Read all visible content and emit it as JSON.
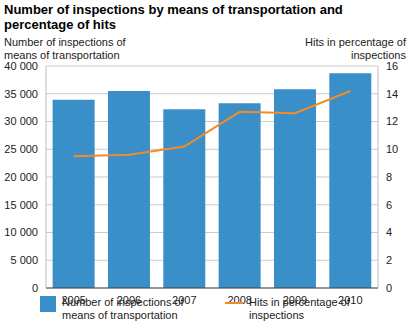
{
  "chart_data": {
    "type": "bar",
    "title": "Number of inspections by means of transportation and percentage of hits",
    "y_label": "Number of inspections of means of transportation",
    "y2_label": "Hits in percentage of inspections",
    "categories": [
      "2005",
      "2006",
      "2007",
      "2008",
      "2009",
      "2010"
    ],
    "series": [
      {
        "name": "Number of inspections of means of transportation",
        "type": "bar",
        "color": "#3a8fc9",
        "values": [
          33900,
          35500,
          32200,
          33300,
          35800,
          38700
        ]
      },
      {
        "name": "Hits in percentage of inspections",
        "type": "line",
        "axis": "y2",
        "color": "#f28c28",
        "values": [
          9.5,
          9.6,
          10.2,
          12.7,
          12.6,
          14.2
        ]
      }
    ],
    "ylim": [
      0,
      40000
    ],
    "yticks": [
      0,
      {
        "value": 5000,
        "label": "5 000"
      },
      {
        "value": 10000,
        "label": "10 000"
      },
      {
        "value": 15000,
        "label": "15 000"
      },
      {
        "value": 20000,
        "label": "20 000"
      },
      {
        "value": 25000,
        "label": "25 000"
      },
      {
        "value": 30000,
        "label": "30 000"
      },
      {
        "value": 35000,
        "label": "35 000"
      },
      {
        "value": 40000,
        "label": "40 000"
      }
    ],
    "y2lim": [
      0,
      16
    ],
    "y2ticks": [
      0,
      2,
      4,
      6,
      8,
      10,
      12,
      14,
      16
    ],
    "grid": true,
    "legend": "bottom"
  }
}
